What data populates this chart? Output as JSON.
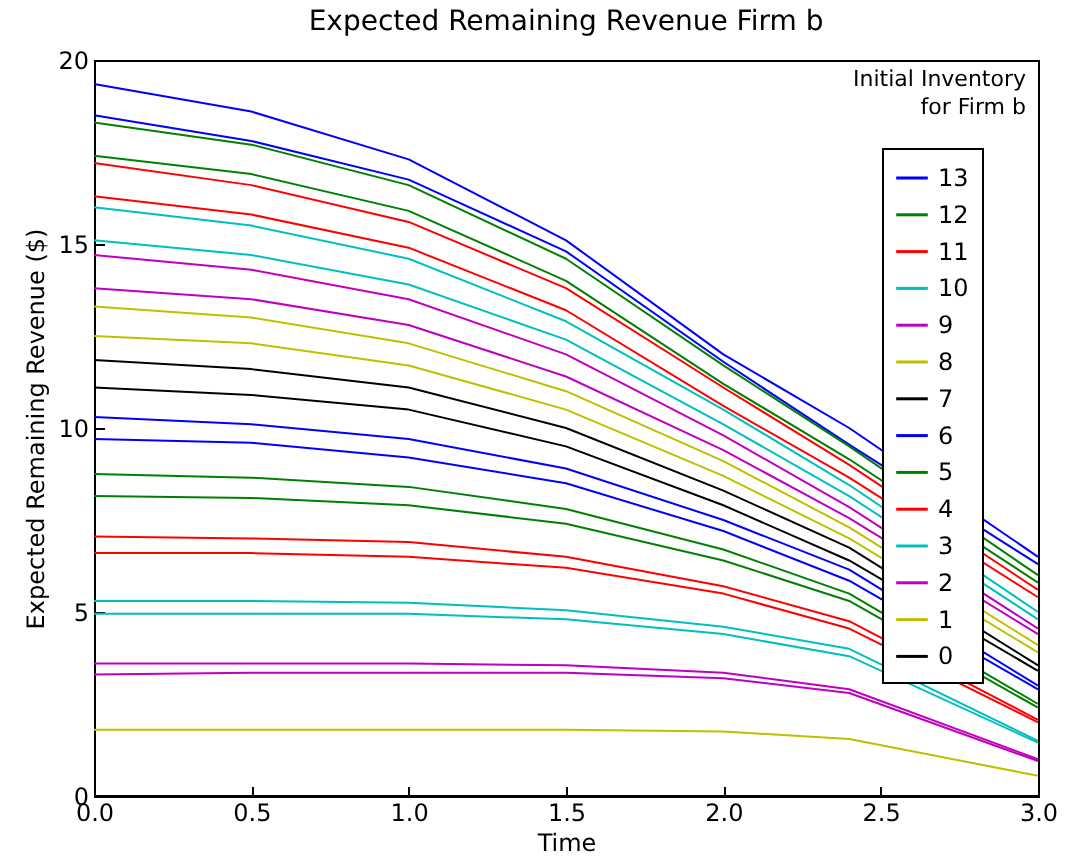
{
  "chart_data": {
    "type": "line",
    "title": "Expected Remaining Revenue Firm b",
    "xlabel": "Time",
    "ylabel": "Expected Remaining Revenue ($)",
    "legend_title": "Initial Inventory\nfor Firm b",
    "legend": "top right",
    "marker": "none",
    "line_style": "solid",
    "grid": false,
    "x": [
      0,
      0.5,
      1,
      1.5,
      2,
      2.4,
      3
    ],
    "xlim": [
      0,
      3
    ],
    "xticks": [
      {
        "value": 0,
        "label": "0.0"
      },
      {
        "value": 0.5,
        "label": "0.5"
      },
      {
        "value": 1,
        "label": "1.0"
      },
      {
        "value": 1.5,
        "label": "1.5"
      },
      {
        "value": 2,
        "label": "2.0"
      },
      {
        "value": 2.5,
        "label": "2.5"
      },
      {
        "value": 3,
        "label": "3.0"
      }
    ],
    "ylim": [
      0,
      20
    ],
    "yticks": [
      0,
      5,
      10,
      15,
      20
    ],
    "series": [
      {
        "name": "13",
        "color": "#0000ff",
        "values": [
          19.35,
          18.6,
          17.3,
          15.1,
          12.0,
          10.0,
          6.5
        ]
      },
      {
        "name": "12",
        "color": "#008000",
        "values": [
          18.3,
          17.7,
          16.6,
          14.6,
          11.7,
          9.5,
          6.0
        ]
      },
      {
        "name": "11",
        "color": "#ff0000",
        "values": [
          17.2,
          16.6,
          15.6,
          13.8,
          11.1,
          9.0,
          5.6
        ]
      },
      {
        "name": "10",
        "color": "#00bfbf",
        "values": [
          16.0,
          15.5,
          14.6,
          12.9,
          10.5,
          8.45,
          5.0
        ]
      },
      {
        "name": "9",
        "color": "#bf00bf",
        "values": [
          14.7,
          14.3,
          13.5,
          12.0,
          9.8,
          7.85,
          4.55
        ]
      },
      {
        "name": "8",
        "color": "#bfbf00",
        "values": [
          13.3,
          13.0,
          12.3,
          11.0,
          9.1,
          7.3,
          4.1
        ]
      },
      {
        "name": "7",
        "color": "#000000",
        "values": [
          11.85,
          11.6,
          11.1,
          10.0,
          8.3,
          6.75,
          3.55
        ]
      },
      {
        "name": "6",
        "color": "#0000ff",
        "values": [
          10.3,
          10.1,
          9.7,
          8.9,
          7.5,
          6.15,
          3.0
        ]
      },
      {
        "name": "5",
        "color": "#008000",
        "values": [
          8.75,
          8.65,
          8.4,
          7.8,
          6.7,
          5.5,
          2.5
        ]
      },
      {
        "name": "4",
        "color": "#ff0000",
        "values": [
          7.05,
          7.0,
          6.9,
          6.5,
          5.7,
          4.75,
          2.07
        ]
      },
      {
        "name": "3",
        "color": "#00bfbf",
        "values": [
          5.3,
          5.3,
          5.25,
          5.05,
          4.6,
          4.0,
          1.5
        ]
      },
      {
        "name": "2",
        "color": "#bf00bf",
        "values": [
          3.6,
          3.6,
          3.6,
          3.55,
          3.35,
          2.9,
          1.0
        ]
      },
      {
        "name": "1",
        "color": "#bfbf00",
        "values": [
          1.8,
          1.8,
          1.8,
          1.8,
          1.75,
          1.55,
          0.55
        ]
      },
      {
        "name": "0",
        "color": "#000000",
        "values": [
          0,
          0,
          0,
          0,
          0,
          0,
          0
        ]
      },
      {
        "color": "#0000ff",
        "values": [
          18.5,
          17.8,
          16.75,
          14.8,
          11.8,
          9.55,
          6.3
        ]
      },
      {
        "color": "#008000",
        "values": [
          17.4,
          16.9,
          15.9,
          14.0,
          11.2,
          9.15,
          5.8
        ]
      },
      {
        "color": "#ff0000",
        "values": [
          16.3,
          15.8,
          14.9,
          13.2,
          10.6,
          8.65,
          5.4
        ]
      },
      {
        "color": "#00bfbf",
        "values": [
          15.1,
          14.7,
          13.9,
          12.4,
          10.1,
          8.15,
          4.8
        ]
      },
      {
        "color": "#bf00bf",
        "values": [
          13.8,
          13.5,
          12.8,
          11.4,
          9.4,
          7.55,
          4.4
        ]
      },
      {
        "color": "#bfbf00",
        "values": [
          12.5,
          12.3,
          11.7,
          10.5,
          8.7,
          7.0,
          3.9
        ]
      },
      {
        "color": "#000000",
        "values": [
          11.1,
          10.9,
          10.5,
          9.5,
          7.9,
          6.4,
          3.4
        ]
      },
      {
        "color": "#0000ff",
        "values": [
          9.7,
          9.6,
          9.2,
          8.5,
          7.2,
          5.85,
          2.9
        ]
      },
      {
        "color": "#008000",
        "values": [
          8.15,
          8.1,
          7.9,
          7.4,
          6.4,
          5.3,
          2.4
        ]
      },
      {
        "color": "#ff0000",
        "values": [
          6.6,
          6.6,
          6.5,
          6.2,
          5.5,
          4.55,
          2.0
        ]
      },
      {
        "color": "#00bfbf",
        "values": [
          4.95,
          4.95,
          4.95,
          4.8,
          4.4,
          3.8,
          1.45
        ]
      },
      {
        "color": "#bf00bf",
        "values": [
          3.3,
          3.35,
          3.35,
          3.35,
          3.2,
          2.8,
          0.95
        ]
      }
    ]
  }
}
